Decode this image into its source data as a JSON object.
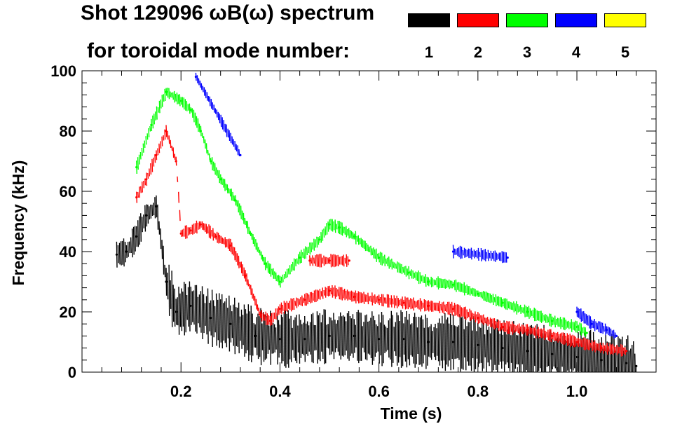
{
  "title_line1": "Shot 129096 ωB(ω) spectrum",
  "title_line2": "for toroidal mode number:",
  "legend": [
    {
      "label": "1",
      "color": "#000000"
    },
    {
      "label": "2",
      "color": "#ff0000"
    },
    {
      "label": "3",
      "color": "#00ff00"
    },
    {
      "label": "4",
      "color": "#0000ff"
    },
    {
      "label": "5",
      "color": "#ffff00"
    }
  ],
  "chart_data": {
    "type": "scatter",
    "title": "Shot 129096 ωB(ω) spectrum",
    "xlabel": "Time (s)",
    "ylabel": "Frequency (kHz)",
    "xlim": [
      0.0,
      1.16
    ],
    "ylim": [
      0,
      100
    ],
    "xticks": [
      0.2,
      0.4,
      0.6,
      0.8,
      1.0
    ],
    "xtick_labels": [
      "0.2",
      "0.4",
      "0.6",
      "0.8",
      "1.0"
    ],
    "yticks": [
      0,
      20,
      40,
      60,
      80,
      100
    ],
    "ytick_labels": [
      "0",
      "20",
      "40",
      "60",
      "80",
      "100"
    ],
    "series": [
      {
        "name": "n=1",
        "color": "#000000",
        "points": [
          [
            0.07,
            39
          ],
          [
            0.09,
            40
          ],
          [
            0.11,
            45
          ],
          [
            0.13,
            52
          ],
          [
            0.15,
            55
          ],
          [
            0.17,
            30
          ],
          [
            0.19,
            20
          ],
          [
            0.22,
            22
          ],
          [
            0.26,
            18
          ],
          [
            0.3,
            16
          ],
          [
            0.35,
            12
          ],
          [
            0.4,
            11
          ],
          [
            0.45,
            11
          ],
          [
            0.5,
            12
          ],
          [
            0.55,
            12
          ],
          [
            0.6,
            11
          ],
          [
            0.65,
            11
          ],
          [
            0.7,
            10
          ],
          [
            0.75,
            10
          ],
          [
            0.8,
            9
          ],
          [
            0.85,
            8
          ],
          [
            0.9,
            7
          ],
          [
            0.95,
            6
          ],
          [
            1.0,
            5
          ],
          [
            1.05,
            4
          ],
          [
            1.1,
            3
          ],
          [
            1.12,
            2
          ]
        ]
      },
      {
        "name": "n=2",
        "color": "#ff0000",
        "points": [
          [
            0.11,
            58
          ],
          [
            0.13,
            64
          ],
          [
            0.15,
            72
          ],
          [
            0.17,
            80
          ],
          [
            0.19,
            70
          ],
          [
            0.2,
            46
          ],
          [
            0.22,
            47
          ],
          [
            0.24,
            49
          ],
          [
            0.27,
            45
          ],
          [
            0.3,
            42
          ],
          [
            0.33,
            32
          ],
          [
            0.36,
            19
          ],
          [
            0.38,
            17
          ],
          [
            0.4,
            21
          ],
          [
            0.45,
            24
          ],
          [
            0.5,
            27
          ],
          [
            0.55,
            25
          ],
          [
            0.6,
            24
          ],
          [
            0.65,
            23
          ],
          [
            0.7,
            22
          ],
          [
            0.75,
            21
          ],
          [
            0.8,
            18
          ],
          [
            0.85,
            15
          ],
          [
            0.9,
            14
          ],
          [
            0.95,
            12
          ],
          [
            1.0,
            10
          ],
          [
            1.05,
            8
          ],
          [
            1.1,
            7
          ],
          [
            0.46,
            37
          ],
          [
            0.5,
            37
          ],
          [
            0.54,
            37
          ]
        ]
      },
      {
        "name": "n=3",
        "color": "#00ff00",
        "points": [
          [
            0.11,
            68
          ],
          [
            0.14,
            82
          ],
          [
            0.17,
            93
          ],
          [
            0.2,
            90
          ],
          [
            0.22,
            87
          ],
          [
            0.24,
            80
          ],
          [
            0.26,
            70
          ],
          [
            0.28,
            64
          ],
          [
            0.31,
            57
          ],
          [
            0.34,
            46
          ],
          [
            0.37,
            36
          ],
          [
            0.4,
            30
          ],
          [
            0.44,
            38
          ],
          [
            0.48,
            44
          ],
          [
            0.5,
            49
          ],
          [
            0.52,
            48
          ],
          [
            0.55,
            45
          ],
          [
            0.6,
            38
          ],
          [
            0.66,
            33
          ],
          [
            0.7,
            30
          ],
          [
            0.75,
            29
          ],
          [
            0.8,
            26
          ],
          [
            0.85,
            23
          ],
          [
            0.9,
            20
          ],
          [
            0.95,
            17
          ],
          [
            1.0,
            15
          ],
          [
            1.02,
            13
          ]
        ]
      },
      {
        "name": "n=4",
        "color": "#0000ff",
        "points": [
          [
            0.23,
            98
          ],
          [
            0.32,
            72
          ],
          [
            0.75,
            40
          ],
          [
            0.86,
            38
          ],
          [
            1.0,
            20
          ],
          [
            1.03,
            16
          ],
          [
            1.06,
            14
          ],
          [
            1.08,
            12
          ]
        ]
      },
      {
        "name": "n=5",
        "color": "#ffff00",
        "points": []
      }
    ]
  }
}
